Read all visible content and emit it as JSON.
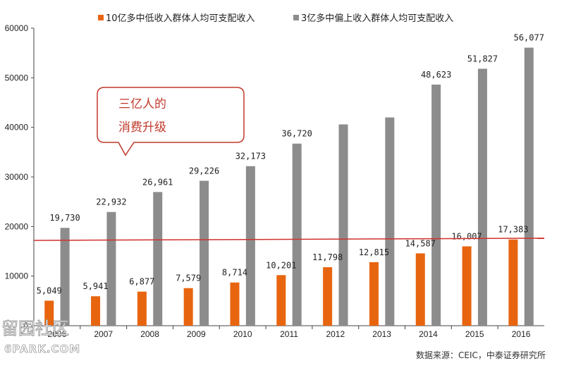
{
  "chart_data": {
    "type": "bar",
    "categories": [
      "2006",
      "2007",
      "2008",
      "2009",
      "2010",
      "2011",
      "2012",
      "2013",
      "2014",
      "2015",
      "2016"
    ],
    "series": [
      {
        "name": "10亿多中低收入群体人均可支配收入",
        "color": "#e8650f",
        "values": [
          5049,
          5941,
          6877,
          7579,
          8714,
          10201,
          11798,
          12815,
          14587,
          16007,
          17383
        ],
        "labels": [
          "5,049",
          "5,941",
          "6,877",
          "7,579",
          "8,714",
          "10,201",
          "11,798",
          "12,815",
          "14,587",
          "16,007",
          "17,383"
        ]
      },
      {
        "name": "3亿多中偏上收入群体人均可支配收入",
        "color": "#8c8c8c",
        "values": [
          19730,
          22932,
          26961,
          29226,
          32173,
          36720,
          40600,
          42000,
          48623,
          51827,
          56077
        ],
        "labels": [
          "19,730",
          "22,932",
          "26,961",
          "29,226",
          "32,173",
          "36,720",
          "",
          "",
          "48,623",
          "51,827",
          "56,077"
        ]
      }
    ],
    "yticks": [
      "0",
      "10000",
      "20000",
      "30000",
      "40000",
      "50000",
      "60000"
    ],
    "ylim": [
      0,
      60000
    ],
    "reference_line": {
      "from": 17200,
      "to": 17650,
      "color": "#d0312d"
    },
    "annotation": {
      "line1": "三亿人的",
      "line2": "消费升级",
      "color": "#c0392b"
    },
    "legend_position": "top",
    "grid": false
  },
  "source": "数据来源：CEIC，中泰证券研究所",
  "watermark": {
    "cn": "留园社区",
    "en": "6PARK.COM"
  }
}
